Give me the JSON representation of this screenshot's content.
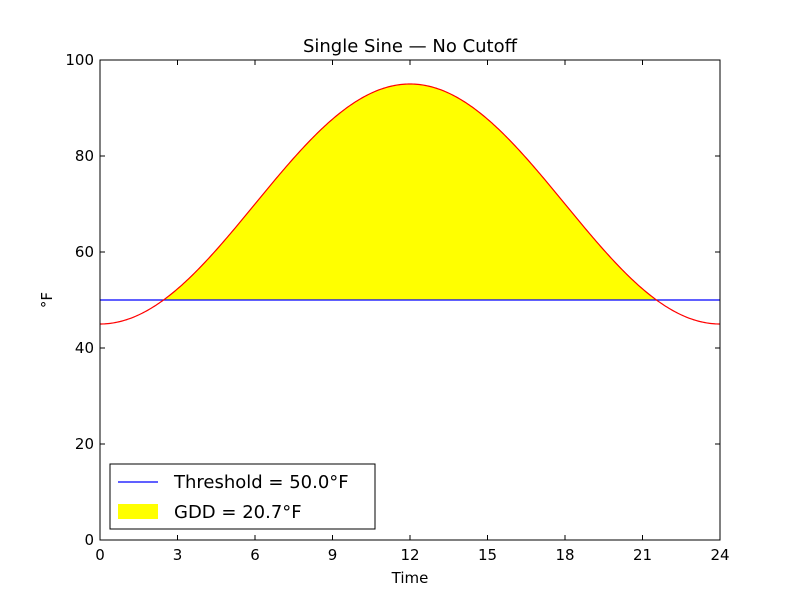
{
  "chart_data": {
    "type": "line",
    "title": "Single Sine — No Cutoff",
    "xlabel": "Time",
    "ylabel": "°F",
    "xlim": [
      0,
      24
    ],
    "ylim": [
      0,
      100
    ],
    "xticks": [
      0,
      3,
      6,
      9,
      12,
      15,
      18,
      21,
      24
    ],
    "yticks": [
      0,
      20,
      40,
      60,
      80,
      100
    ],
    "grid": false,
    "legend_position": "lower-left",
    "temperature_curve": {
      "min": 45,
      "max": 95,
      "min_time": 0,
      "max_time": 12,
      "period": 24,
      "color": "#ff0000"
    },
    "threshold": {
      "value": 50.0,
      "color": "#0000ff"
    },
    "fill_color": "#ffff00",
    "legend": [
      {
        "label": "Threshold = 50.0°F",
        "kind": "line",
        "color": "#0000ff"
      },
      {
        "label": "GDD = 20.7°F",
        "kind": "patch",
        "color": "#ffff00"
      }
    ]
  }
}
